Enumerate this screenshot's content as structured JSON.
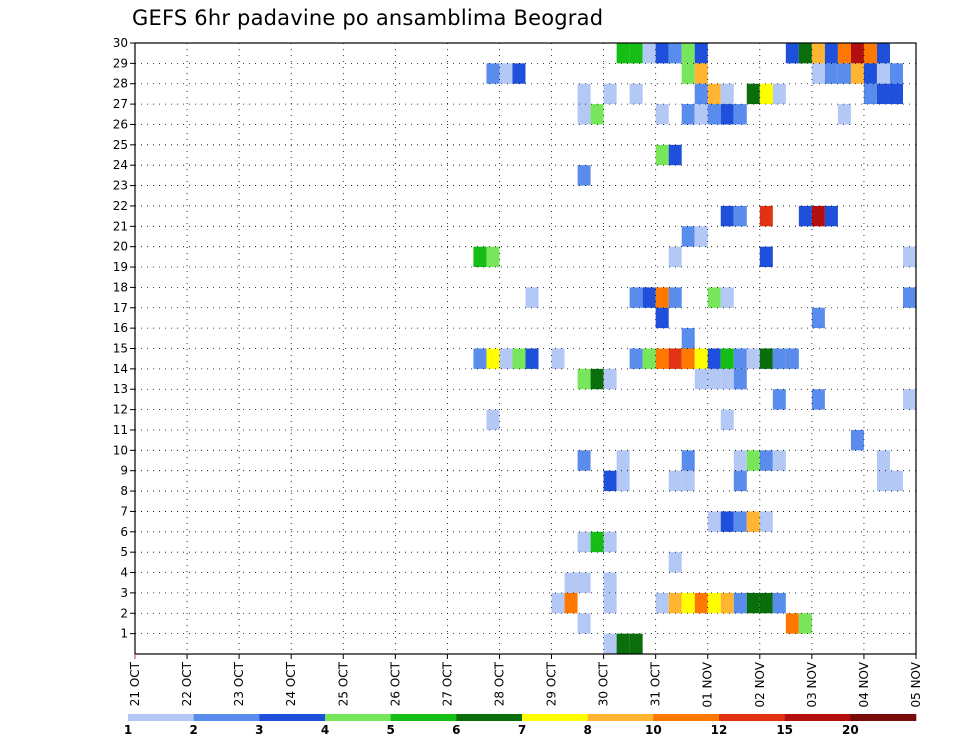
{
  "title": "GEFS 6hr padavine po ansamblima Beograd",
  "chart_data": {
    "type": "heatmap",
    "title": "GEFS 6hr padavine po ansamblima Beograd",
    "xlabel": "",
    "ylabel": "",
    "x_ticks": [
      "21 OCT",
      "22 OCT",
      "23 OCT",
      "24 OCT",
      "25 OCT",
      "26 OCT",
      "27 OCT",
      "28 OCT",
      "29 OCT",
      "30 OCT",
      "31 OCT",
      "01 NOV",
      "02 NOV",
      "03 NOV",
      "04 NOV",
      "05 NOV"
    ],
    "y_ticks": [
      1,
      2,
      3,
      4,
      5,
      6,
      7,
      8,
      9,
      10,
      11,
      12,
      13,
      14,
      15,
      16,
      17,
      18,
      19,
      20,
      21,
      22,
      23,
      24,
      25,
      26,
      27,
      28,
      29,
      30
    ],
    "xlim": [
      0,
      60
    ],
    "ylim": [
      0,
      30
    ],
    "grid": true,
    "x_unit": "6-hour step index from 21 OCT 00Z",
    "colorbar": {
      "colors": [
        "#b4c8f5",
        "#5a8ced",
        "#1e50dc",
        "#78e65a",
        "#14be14",
        "#0a6e0a",
        "#ffff00",
        "#ffb432",
        "#ff7800",
        "#e13214",
        "#b40f0f",
        "#780a0a"
      ],
      "labels": [
        "1",
        "2",
        "3",
        "4",
        "5",
        "6",
        "7",
        "8",
        "10",
        "12",
        "15",
        "20"
      ]
    },
    "cells": [
      {
        "x": 37,
        "y": 30,
        "c": 5
      },
      {
        "x": 38,
        "y": 30,
        "c": 5
      },
      {
        "x": 39,
        "y": 30,
        "c": 1
      },
      {
        "x": 40,
        "y": 30,
        "c": 3
      },
      {
        "x": 41,
        "y": 30,
        "c": 2
      },
      {
        "x": 42,
        "y": 30,
        "c": 4
      },
      {
        "x": 43,
        "y": 30,
        "c": 3
      },
      {
        "x": 50,
        "y": 30,
        "c": 3
      },
      {
        "x": 51,
        "y": 30,
        "c": 6
      },
      {
        "x": 52,
        "y": 30,
        "c": 8
      },
      {
        "x": 53,
        "y": 30,
        "c": 3
      },
      {
        "x": 54,
        "y": 30,
        "c": 9
      },
      {
        "x": 55,
        "y": 30,
        "c": 11
      },
      {
        "x": 56,
        "y": 30,
        "c": 9
      },
      {
        "x": 57,
        "y": 30,
        "c": 3
      },
      {
        "x": 27,
        "y": 29,
        "c": 2
      },
      {
        "x": 28,
        "y": 29,
        "c": 1
      },
      {
        "x": 29,
        "y": 29,
        "c": 3
      },
      {
        "x": 42,
        "y": 29,
        "c": 4
      },
      {
        "x": 43,
        "y": 29,
        "c": 8
      },
      {
        "x": 52,
        "y": 29,
        "c": 1
      },
      {
        "x": 53,
        "y": 29,
        "c": 2
      },
      {
        "x": 54,
        "y": 29,
        "c": 2
      },
      {
        "x": 55,
        "y": 29,
        "c": 8
      },
      {
        "x": 56,
        "y": 29,
        "c": 3
      },
      {
        "x": 57,
        "y": 29,
        "c": 1
      },
      {
        "x": 58,
        "y": 29,
        "c": 2
      },
      {
        "x": 34,
        "y": 28,
        "c": 1
      },
      {
        "x": 36,
        "y": 28,
        "c": 1
      },
      {
        "x": 38,
        "y": 28,
        "c": 1
      },
      {
        "x": 43,
        "y": 28,
        "c": 2
      },
      {
        "x": 44,
        "y": 28,
        "c": 8
      },
      {
        "x": 45,
        "y": 28,
        "c": 1
      },
      {
        "x": 47,
        "y": 28,
        "c": 6
      },
      {
        "x": 48,
        "y": 28,
        "c": 7
      },
      {
        "x": 49,
        "y": 28,
        "c": 1
      },
      {
        "x": 56,
        "y": 28,
        "c": 2
      },
      {
        "x": 57,
        "y": 28,
        "c": 3
      },
      {
        "x": 58,
        "y": 28,
        "c": 3
      },
      {
        "x": 34,
        "y": 27,
        "c": 1
      },
      {
        "x": 35,
        "y": 27,
        "c": 4
      },
      {
        "x": 40,
        "y": 27,
        "c": 1
      },
      {
        "x": 42,
        "y": 27,
        "c": 2
      },
      {
        "x": 43,
        "y": 27,
        "c": 1
      },
      {
        "x": 44,
        "y": 27,
        "c": 2
      },
      {
        "x": 45,
        "y": 27,
        "c": 3
      },
      {
        "x": 46,
        "y": 27,
        "c": 2
      },
      {
        "x": 54,
        "y": 27,
        "c": 1
      },
      {
        "x": 40,
        "y": 25,
        "c": 4
      },
      {
        "x": 41,
        "y": 25,
        "c": 3
      },
      {
        "x": 34,
        "y": 24,
        "c": 2
      },
      {
        "x": 45,
        "y": 22,
        "c": 3
      },
      {
        "x": 46,
        "y": 22,
        "c": 2
      },
      {
        "x": 48,
        "y": 22,
        "c": 10
      },
      {
        "x": 51,
        "y": 22,
        "c": 3
      },
      {
        "x": 52,
        "y": 22,
        "c": 11
      },
      {
        "x": 53,
        "y": 22,
        "c": 3
      },
      {
        "x": 42,
        "y": 21,
        "c": 2
      },
      {
        "x": 43,
        "y": 21,
        "c": 1
      },
      {
        "x": 26,
        "y": 20,
        "c": 5
      },
      {
        "x": 27,
        "y": 20,
        "c": 4
      },
      {
        "x": 41,
        "y": 20,
        "c": 1
      },
      {
        "x": 48,
        "y": 20,
        "c": 3
      },
      {
        "x": 59,
        "y": 20,
        "c": 1
      },
      {
        "x": 30,
        "y": 18,
        "c": 1
      },
      {
        "x": 38,
        "y": 18,
        "c": 2
      },
      {
        "x": 39,
        "y": 18,
        "c": 3
      },
      {
        "x": 40,
        "y": 18,
        "c": 9
      },
      {
        "x": 41,
        "y": 18,
        "c": 2
      },
      {
        "x": 44,
        "y": 18,
        "c": 4
      },
      {
        "x": 45,
        "y": 18,
        "c": 1
      },
      {
        "x": 59,
        "y": 18,
        "c": 2
      },
      {
        "x": 40,
        "y": 17,
        "c": 3
      },
      {
        "x": 52,
        "y": 17,
        "c": 2
      },
      {
        "x": 42,
        "y": 16,
        "c": 2
      },
      {
        "x": 26,
        "y": 15,
        "c": 2
      },
      {
        "x": 27,
        "y": 15,
        "c": 7
      },
      {
        "x": 28,
        "y": 15,
        "c": 1
      },
      {
        "x": 29,
        "y": 15,
        "c": 4
      },
      {
        "x": 30,
        "y": 15,
        "c": 3
      },
      {
        "x": 32,
        "y": 15,
        "c": 1
      },
      {
        "x": 38,
        "y": 15,
        "c": 2
      },
      {
        "x": 39,
        "y": 15,
        "c": 4
      },
      {
        "x": 40,
        "y": 15,
        "c": 9
      },
      {
        "x": 41,
        "y": 15,
        "c": 10
      },
      {
        "x": 42,
        "y": 15,
        "c": 9
      },
      {
        "x": 43,
        "y": 15,
        "c": 7
      },
      {
        "x": 44,
        "y": 15,
        "c": 3
      },
      {
        "x": 45,
        "y": 15,
        "c": 5
      },
      {
        "x": 46,
        "y": 15,
        "c": 2
      },
      {
        "x": 47,
        "y": 15,
        "c": 1
      },
      {
        "x": 48,
        "y": 15,
        "c": 6
      },
      {
        "x": 49,
        "y": 15,
        "c": 2
      },
      {
        "x": 50,
        "y": 15,
        "c": 2
      },
      {
        "x": 34,
        "y": 14,
        "c": 4
      },
      {
        "x": 35,
        "y": 14,
        "c": 6
      },
      {
        "x": 36,
        "y": 14,
        "c": 1
      },
      {
        "x": 43,
        "y": 14,
        "c": 1
      },
      {
        "x": 44,
        "y": 14,
        "c": 1
      },
      {
        "x": 45,
        "y": 14,
        "c": 1
      },
      {
        "x": 46,
        "y": 14,
        "c": 2
      },
      {
        "x": 49,
        "y": 13,
        "c": 2
      },
      {
        "x": 52,
        "y": 13,
        "c": 2
      },
      {
        "x": 59,
        "y": 13,
        "c": 1
      },
      {
        "x": 27,
        "y": 12,
        "c": 1
      },
      {
        "x": 45,
        "y": 12,
        "c": 1
      },
      {
        "x": 55,
        "y": 11,
        "c": 2
      },
      {
        "x": 34,
        "y": 10,
        "c": 2
      },
      {
        "x": 37,
        "y": 10,
        "c": 1
      },
      {
        "x": 42,
        "y": 10,
        "c": 2
      },
      {
        "x": 46,
        "y": 10,
        "c": 1
      },
      {
        "x": 47,
        "y": 10,
        "c": 4
      },
      {
        "x": 48,
        "y": 10,
        "c": 2
      },
      {
        "x": 49,
        "y": 10,
        "c": 1
      },
      {
        "x": 57,
        "y": 10,
        "c": 1
      },
      {
        "x": 36,
        "y": 9,
        "c": 3
      },
      {
        "x": 37,
        "y": 9,
        "c": 1
      },
      {
        "x": 41,
        "y": 9,
        "c": 1
      },
      {
        "x": 42,
        "y": 9,
        "c": 1
      },
      {
        "x": 46,
        "y": 9,
        "c": 2
      },
      {
        "x": 57,
        "y": 9,
        "c": 1
      },
      {
        "x": 58,
        "y": 9,
        "c": 1
      },
      {
        "x": 44,
        "y": 7,
        "c": 1
      },
      {
        "x": 45,
        "y": 7,
        "c": 3
      },
      {
        "x": 46,
        "y": 7,
        "c": 2
      },
      {
        "x": 47,
        "y": 7,
        "c": 8
      },
      {
        "x": 48,
        "y": 7,
        "c": 1
      },
      {
        "x": 34,
        "y": 6,
        "c": 1
      },
      {
        "x": 35,
        "y": 6,
        "c": 5
      },
      {
        "x": 36,
        "y": 6,
        "c": 1
      },
      {
        "x": 41,
        "y": 5,
        "c": 1
      },
      {
        "x": 33,
        "y": 4,
        "c": 1
      },
      {
        "x": 34,
        "y": 4,
        "c": 1
      },
      {
        "x": 36,
        "y": 4,
        "c": 1
      },
      {
        "x": 32,
        "y": 3,
        "c": 1
      },
      {
        "x": 33,
        "y": 3,
        "c": 9
      },
      {
        "x": 36,
        "y": 3,
        "c": 1
      },
      {
        "x": 40,
        "y": 3,
        "c": 1
      },
      {
        "x": 41,
        "y": 3,
        "c": 8
      },
      {
        "x": 42,
        "y": 3,
        "c": 7
      },
      {
        "x": 43,
        "y": 3,
        "c": 9
      },
      {
        "x": 44,
        "y": 3,
        "c": 7
      },
      {
        "x": 45,
        "y": 3,
        "c": 8
      },
      {
        "x": 46,
        "y": 3,
        "c": 2
      },
      {
        "x": 47,
        "y": 3,
        "c": 6
      },
      {
        "x": 48,
        "y": 3,
        "c": 6
      },
      {
        "x": 49,
        "y": 3,
        "c": 2
      },
      {
        "x": 34,
        "y": 2,
        "c": 1
      },
      {
        "x": 50,
        "y": 2,
        "c": 9
      },
      {
        "x": 51,
        "y": 2,
        "c": 4
      },
      {
        "x": 36,
        "y": 1,
        "c": 1
      },
      {
        "x": 37,
        "y": 1,
        "c": 6
      },
      {
        "x": 38,
        "y": 1,
        "c": 6
      }
    ]
  }
}
